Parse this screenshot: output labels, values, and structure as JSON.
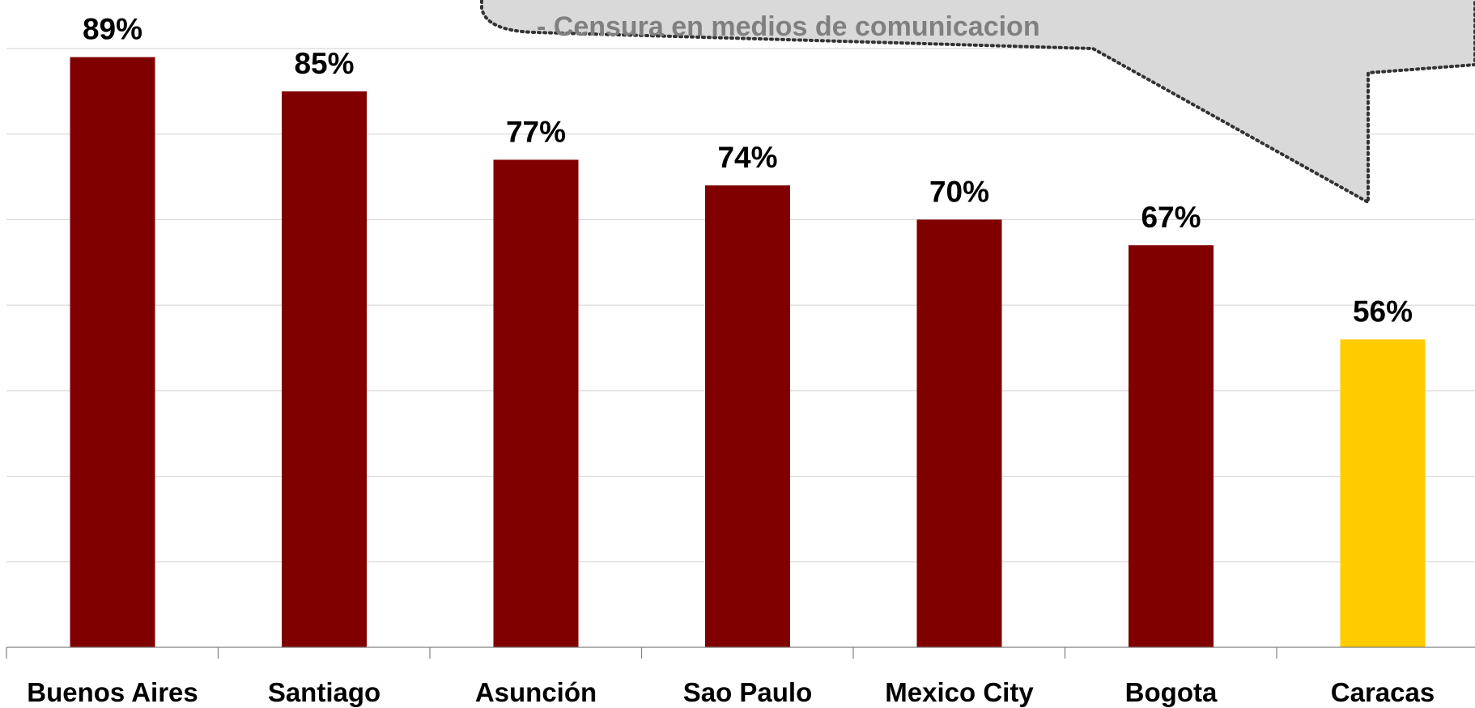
{
  "chart_data": {
    "type": "bar",
    "title": "",
    "xlabel": "",
    "ylabel": "",
    "categories": [
      "Buenos Aires",
      "Santiago",
      "Asunción",
      "Sao Paulo",
      "Mexico City",
      "Bogota",
      "Caracas"
    ],
    "values": [
      89,
      85,
      77,
      74,
      70,
      67,
      56
    ],
    "data_labels": [
      "89%",
      "85%",
      "77%",
      "74%",
      "70%",
      "67%",
      "56%"
    ],
    "value_unit": "%",
    "ylim": [
      20,
      90
    ],
    "grid": true,
    "legend": "none",
    "colors": {
      "default_bar": "#800000",
      "highlight_bar": "#ffcc00",
      "gridline": "#d0d0d0",
      "callout_fill": "#d9d9d9"
    },
    "highlight_category": "Caracas",
    "callout": {
      "text": "- Censura en medios de comunicacion"
    }
  }
}
